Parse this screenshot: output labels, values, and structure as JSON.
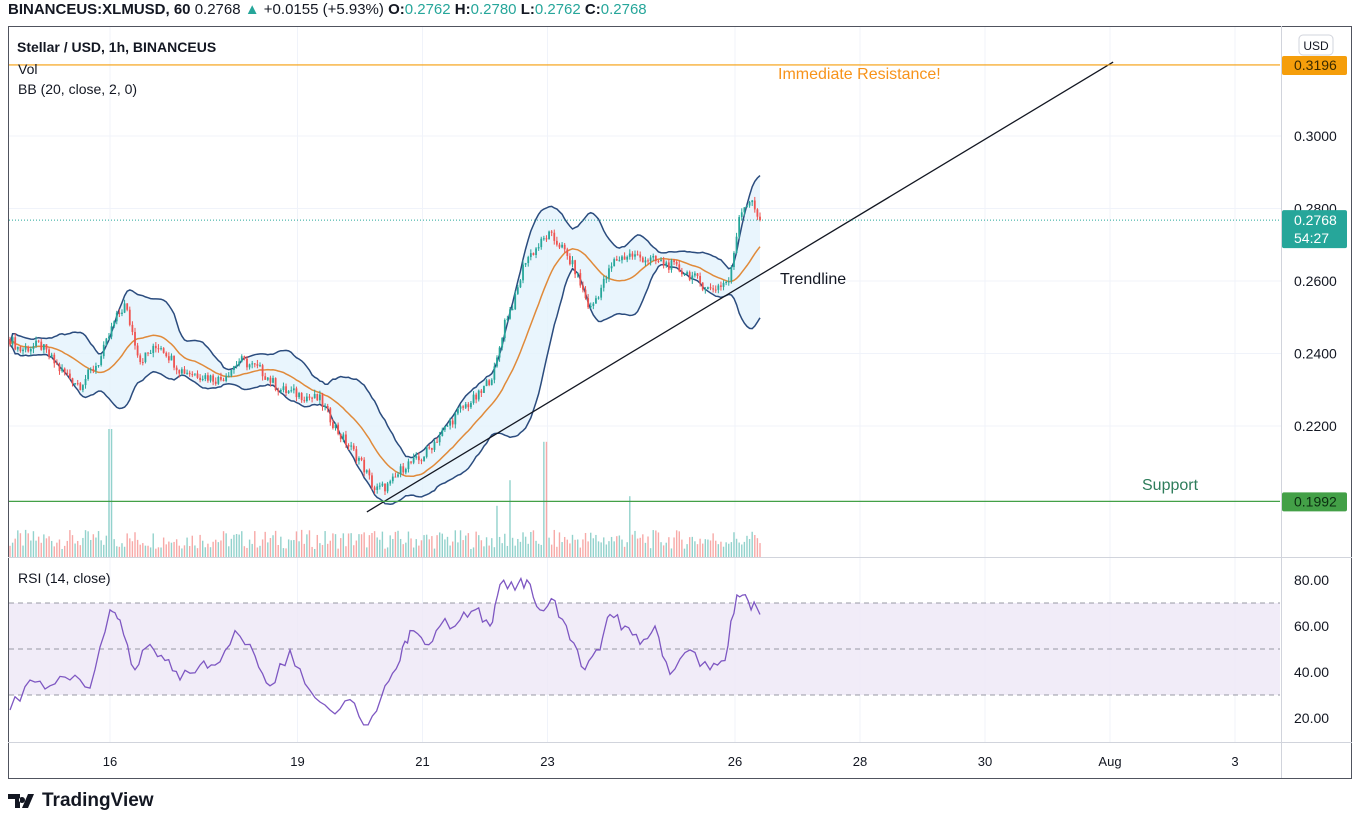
{
  "header": {
    "symbol": "BINANCEUS:XLMUSD, 60",
    "last": "0.2768",
    "change": "+0.0155 (+5.93%)",
    "o_label": "O:",
    "o": "0.2762",
    "h_label": "H:",
    "h": "0.2780",
    "l_label": "L:",
    "l": "0.2762",
    "c_label": "C:",
    "c": "0.2768"
  },
  "legend": {
    "title": "Stellar / USD, 1h, BINANCEUS",
    "vol": "Vol",
    "bb": "BB (20, close, 2, 0)",
    "rsi": "RSI (14, close)"
  },
  "currency": "USD",
  "footer": {
    "brand": "TradingView"
  },
  "colors": {
    "up": "#26a69a",
    "down": "#ef5350",
    "resistance": "#f59e0b",
    "support": "#43a047",
    "bb_band": "#2b4c7e",
    "bb_fill": "#e3f2fd",
    "bb_basis": "#e08a3a",
    "rsi": "#7e57c2",
    "trend": "#131722"
  },
  "chart_data": [
    {
      "type": "candlestick",
      "title": "Stellar / USD, 1h, BINANCEUS",
      "x_unit": "day of July (fractional)",
      "ylim": [
        0.19,
        0.325
      ],
      "y_ticks": [
        "0.3000",
        "0.2800",
        "0.2600",
        "0.2400",
        "0.2200"
      ],
      "x_ticks": [
        {
          "day": 16,
          "label": "16"
        },
        {
          "day": 19,
          "label": "19"
        },
        {
          "day": 21,
          "label": "21"
        },
        {
          "day": 23,
          "label": "23"
        },
        {
          "day": 26,
          "label": "26"
        },
        {
          "day": 28,
          "label": "28"
        },
        {
          "day": 30,
          "label": "30"
        },
        {
          "day": 32,
          "label": "Aug"
        },
        {
          "day": 34,
          "label": "3"
        }
      ],
      "close_path": [
        [
          14.4,
          0.244
        ],
        [
          14.56,
          0.241
        ],
        [
          14.88,
          0.2424
        ],
        [
          15.2,
          0.2355
        ],
        [
          15.52,
          0.2313
        ],
        [
          15.84,
          0.2382
        ],
        [
          16.08,
          0.2492
        ],
        [
          16.24,
          0.2534
        ],
        [
          16.48,
          0.2382
        ],
        [
          16.8,
          0.2424
        ],
        [
          17.12,
          0.2355
        ],
        [
          17.44,
          0.2341
        ],
        [
          17.76,
          0.2327
        ],
        [
          18.08,
          0.2382
        ],
        [
          18.4,
          0.2355
        ],
        [
          18.72,
          0.23
        ],
        [
          19.04,
          0.2286
        ],
        [
          19.36,
          0.2272
        ],
        [
          19.68,
          0.2175
        ],
        [
          20.0,
          0.2106
        ],
        [
          20.24,
          0.2023
        ],
        [
          20.48,
          0.2037
        ],
        [
          20.72,
          0.2093
        ],
        [
          20.96,
          0.2106
        ],
        [
          21.28,
          0.2175
        ],
        [
          21.6,
          0.2244
        ],
        [
          21.92,
          0.2286
        ],
        [
          22.16,
          0.2355
        ],
        [
          22.32,
          0.2492
        ],
        [
          22.48,
          0.2548
        ],
        [
          22.64,
          0.2658
        ],
        [
          22.8,
          0.2686
        ],
        [
          23.01,
          0.2727
        ],
        [
          23.2,
          0.27
        ],
        [
          23.44,
          0.2631
        ],
        [
          23.68,
          0.252
        ],
        [
          23.84,
          0.2575
        ],
        [
          24.08,
          0.2658
        ],
        [
          24.32,
          0.2672
        ],
        [
          24.64,
          0.2658
        ],
        [
          24.96,
          0.2644
        ],
        [
          25.28,
          0.2617
        ],
        [
          25.6,
          0.2575
        ],
        [
          25.92,
          0.2603
        ],
        [
          26.08,
          0.2796
        ],
        [
          26.24,
          0.2823
        ],
        [
          26.4,
          0.2768
        ]
      ],
      "volume_spikes": [
        [
          16.0,
          4.0
        ],
        [
          22.2,
          1.6
        ],
        [
          22.4,
          2.4
        ],
        [
          22.96,
          3.6
        ],
        [
          24.32,
          1.9
        ]
      ],
      "indicators": {
        "bollinger": {
          "length": 20,
          "source": "close",
          "mult": 2,
          "offset": 0
        }
      },
      "last_price": {
        "value": 0.2768,
        "label": "0.2768",
        "countdown": "54:27"
      },
      "horizontal_lines": [
        {
          "name": "resistance",
          "value": 0.3196,
          "label": "0.3196",
          "text": "Immediate Resistance!"
        },
        {
          "name": "support",
          "value": 0.1992,
          "label": "0.1992",
          "text": "Support"
        }
      ],
      "trendline": {
        "text": "Trendline",
        "from": [
          20.11,
          0.1963
        ],
        "to": [
          32.05,
          0.3204
        ]
      }
    },
    {
      "type": "line",
      "title": "RSI (14, close)",
      "ylim": [
        10,
        90
      ],
      "y_ticks": [
        "80.00",
        "60.00",
        "40.00",
        "20.00"
      ],
      "bands": [
        30,
        50,
        70
      ],
      "points": [
        [
          14.4,
          23.5
        ],
        [
          14.72,
          36.5
        ],
        [
          15.04,
          34
        ],
        [
          15.36,
          36.5
        ],
        [
          15.68,
          33
        ],
        [
          16.0,
          67
        ],
        [
          16.16,
          62.6
        ],
        [
          16.4,
          41
        ],
        [
          16.64,
          52
        ],
        [
          16.88,
          45
        ],
        [
          17.12,
          36.5
        ],
        [
          17.44,
          43
        ],
        [
          17.68,
          43
        ],
        [
          18.0,
          58
        ],
        [
          18.32,
          47
        ],
        [
          18.56,
          34
        ],
        [
          18.88,
          49.6
        ],
        [
          19.2,
          32
        ],
        [
          19.52,
          23.5
        ],
        [
          19.84,
          28
        ],
        [
          20.13,
          17
        ],
        [
          20.4,
          34
        ],
        [
          20.64,
          45
        ],
        [
          20.8,
          58
        ],
        [
          21.04,
          52
        ],
        [
          21.28,
          60
        ],
        [
          21.6,
          62.6
        ],
        [
          21.84,
          67
        ],
        [
          22.08,
          60
        ],
        [
          22.24,
          78
        ],
        [
          22.48,
          75.6
        ],
        [
          22.67,
          80
        ],
        [
          22.88,
          67
        ],
        [
          23.12,
          71
        ],
        [
          23.36,
          54
        ],
        [
          23.6,
          41
        ],
        [
          23.84,
          49.6
        ],
        [
          24.0,
          65
        ],
        [
          24.24,
          60
        ],
        [
          24.48,
          52
        ],
        [
          24.72,
          60
        ],
        [
          24.96,
          39
        ],
        [
          25.28,
          49.6
        ],
        [
          25.6,
          41
        ],
        [
          25.84,
          45
        ],
        [
          26.03,
          73.5
        ],
        [
          26.21,
          71
        ],
        [
          26.4,
          65
        ]
      ]
    }
  ]
}
